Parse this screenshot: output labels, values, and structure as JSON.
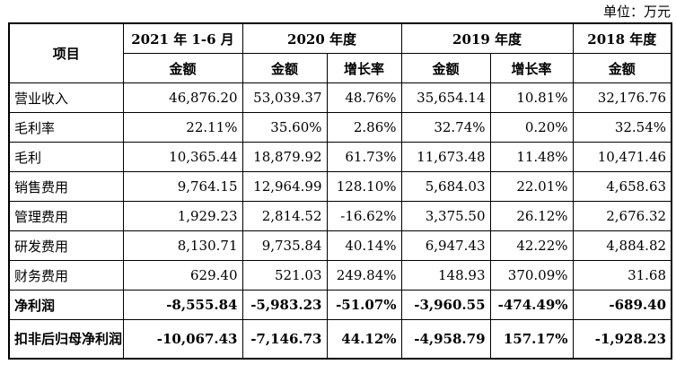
{
  "unit": "单位：万元",
  "header": {
    "item": "项目",
    "periods": [
      "2021 年 1-6 月",
      "2020 年度",
      "2019 年度",
      "2018 年度"
    ],
    "amount": "金额",
    "growth": "增长率"
  },
  "rows": [
    {
      "label": "营业收入",
      "v": [
        "46,876.20",
        "53,039.37",
        "48.76%",
        "35,654.14",
        "10.81%",
        "32,176.76"
      ]
    },
    {
      "label": "毛利率",
      "v": [
        "22.11%",
        "35.60%",
        "2.86%",
        "32.74%",
        "0.20%",
        "32.54%"
      ]
    },
    {
      "label": "毛利",
      "v": [
        "10,365.44",
        "18,879.92",
        "61.73%",
        "11,673.48",
        "11.48%",
        "10,471.46"
      ]
    },
    {
      "label": "销售费用",
      "v": [
        "9,764.15",
        "12,964.99",
        "128.10%",
        "5,684.03",
        "22.01%",
        "4,658.63"
      ]
    },
    {
      "label": "管理费用",
      "v": [
        "1,929.23",
        "2,814.52",
        "-16.62%",
        "3,375.50",
        "26.12%",
        "2,676.32"
      ]
    },
    {
      "label": "研发费用",
      "v": [
        "8,130.71",
        "9,735.84",
        "40.14%",
        "6,947.43",
        "42.22%",
        "4,884.82"
      ]
    },
    {
      "label": "财务费用",
      "v": [
        "629.40",
        "521.03",
        "249.84%",
        "148.93",
        "370.09%",
        "31.68"
      ]
    },
    {
      "label": "净利润",
      "v": [
        "-8,555.84",
        "-5,983.23",
        "-51.07%",
        "-3,960.55",
        "-474.49%",
        "-689.40"
      ]
    },
    {
      "label": "扣非后归母净利润",
      "v": [
        "-10,067.43",
        "-7,146.73",
        "44.12%",
        "-4,958.79",
        "157.17%",
        "-1,928.23"
      ]
    }
  ]
}
